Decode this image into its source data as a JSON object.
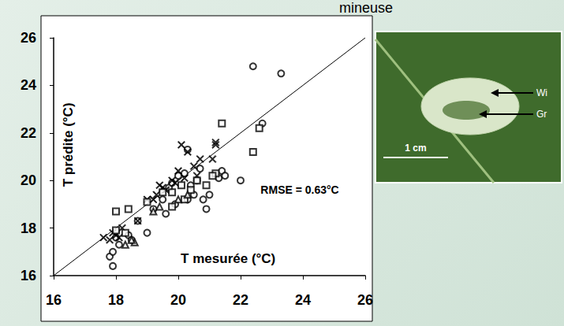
{
  "chart_data": {
    "type": "scatter",
    "title": "mineuse",
    "x_label": "T mesurée (°C)",
    "y_label": "T prédite (°C)",
    "annotations": [
      "RMSE = 0.63°C"
    ],
    "xlim": [
      16,
      26
    ],
    "ylim": [
      16,
      26
    ],
    "xticks": [
      16,
      18,
      20,
      22,
      24,
      26
    ],
    "yticks": [
      16,
      18,
      20,
      22,
      24,
      26
    ],
    "grid": false,
    "series": [
      {
        "marker": "circle",
        "color": "#000000",
        "x": [
          17.9,
          17.8,
          17.9,
          18.1,
          18.4,
          18.5,
          18.0,
          19.0,
          19.2,
          19.6,
          19.9,
          20.3,
          20.5,
          20.8,
          20.9,
          21.0,
          21.3,
          21.4,
          21.5,
          20.6,
          20.2,
          20.0,
          19.7,
          20.3,
          22.0,
          22.4,
          23.3,
          22.7,
          19.5,
          20.7,
          18.7,
          19.8,
          20.4
        ],
        "values": [
          16.4,
          16.8,
          17.0,
          17.3,
          17.7,
          17.5,
          17.6,
          17.8,
          18.8,
          18.6,
          19.0,
          19.2,
          19.4,
          19.2,
          18.8,
          19.4,
          20.1,
          20.4,
          20.2,
          20.0,
          20.3,
          20.2,
          19.7,
          21.3,
          20.0,
          24.8,
          24.5,
          22.4,
          19.2,
          20.5,
          18.3,
          19.9,
          19.8
        ]
      },
      {
        "marker": "cross",
        "color": "#000000",
        "x": [
          17.6,
          17.8,
          17.9,
          18.0,
          18.2,
          18.7,
          19.0,
          19.3,
          19.4,
          19.6,
          19.8,
          20.0,
          20.1,
          20.3,
          20.5,
          20.7,
          21.2,
          21.2,
          19.9,
          20.2,
          19.5,
          20.6,
          21.1,
          18.1,
          19.2
        ],
        "values": [
          17.6,
          17.5,
          17.8,
          17.7,
          18.0,
          18.3,
          19.2,
          19.4,
          19.8,
          19.6,
          20.0,
          20.4,
          21.5,
          21.2,
          20.6,
          20.9,
          21.5,
          21.6,
          19.9,
          20.1,
          19.7,
          20.2,
          20.9,
          17.6,
          19.2
        ]
      },
      {
        "marker": "square",
        "color": "#000000",
        "x": [
          18.0,
          18.4,
          18.0,
          18.3,
          19.0,
          19.5,
          19.8,
          20.1,
          20.4,
          20.9,
          21.2,
          21.4,
          22.4,
          22.6,
          21.1,
          20.2,
          19.8,
          20.6
        ],
        "values": [
          18.7,
          18.8,
          17.9,
          17.8,
          19.1,
          19.5,
          19.5,
          19.8,
          19.6,
          19.8,
          20.3,
          22.4,
          21.2,
          22.2,
          20.2,
          19.2,
          18.9,
          20.0
        ]
      },
      {
        "marker": "triangle",
        "color": "#000000",
        "x": [
          18.3,
          18.6,
          19.2,
          19.4,
          20.0,
          20.3,
          18.5
        ],
        "values": [
          17.3,
          17.4,
          18.7,
          18.9,
          19.2,
          19.4,
          17.5
        ]
      }
    ]
  },
  "inset_photo": {
    "labels": [
      "Wi",
      "Gr"
    ],
    "scale_bar": "1 cm"
  }
}
